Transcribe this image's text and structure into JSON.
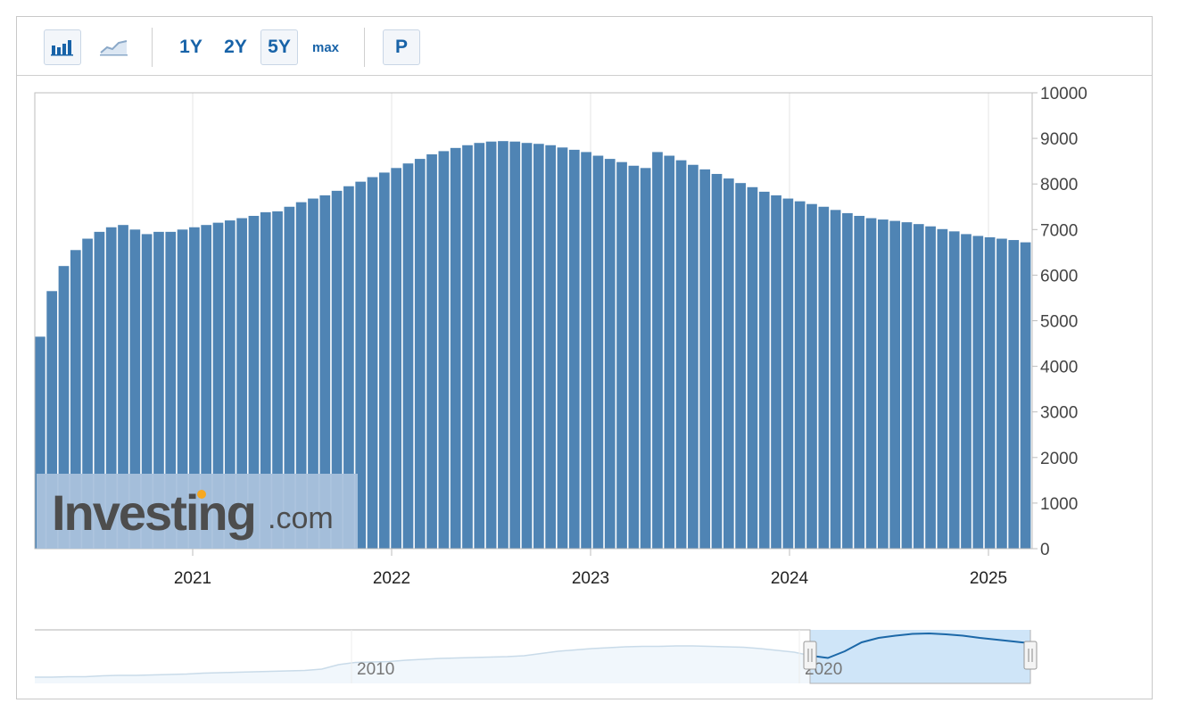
{
  "toolbar": {
    "chart_type_buttons": [
      {
        "name": "bar-chart-icon",
        "selected": true
      },
      {
        "name": "area-chart-icon",
        "selected": false
      }
    ],
    "ranges": [
      {
        "label": "1Y",
        "selected": false
      },
      {
        "label": "2Y",
        "selected": false
      },
      {
        "label": "5Y",
        "selected": true
      },
      {
        "label": "max",
        "selected": false
      }
    ],
    "p_label": "P"
  },
  "colors": {
    "bar": "#4f84b4",
    "navigator_line": "#1c68a8",
    "navigator_fill": "#cfe5f8",
    "navigator_bg_line": "#c9dbe9",
    "navigator_bg_fill": "#f1f7fc",
    "axis_text": "#444444",
    "watermark_bg": "#a9c1dc",
    "watermark_text": "#4d4d4d",
    "watermark_dot": "#f6a821"
  },
  "watermark": {
    "text": "Investing",
    "suffix": ".com"
  },
  "chart_data": {
    "type": "bar",
    "title": "",
    "xlabel": "",
    "ylabel": "",
    "ylim": [
      0,
      10000
    ],
    "yticks": [
      "0",
      "1000",
      "2000",
      "3000",
      "4000",
      "5000",
      "6000",
      "7000",
      "8000",
      "9000",
      "10000"
    ],
    "xticks": [
      "2021",
      "2022",
      "2023",
      "2024",
      "2025"
    ],
    "x_range": [
      "2020-04",
      "2025-03"
    ],
    "grid": true,
    "series": [
      {
        "values": [
          4650,
          5650,
          6200,
          6550,
          6800,
          6950,
          7050,
          7100,
          7000,
          6900,
          6950,
          6950,
          7000,
          7050,
          7100,
          7150,
          7200,
          7250,
          7300,
          7380,
          7400,
          7500,
          7600,
          7680,
          7750,
          7850,
          7950,
          8050,
          8150,
          8250,
          8350,
          8450,
          8550,
          8650,
          8720,
          8790,
          8850,
          8900,
          8930,
          8940,
          8930,
          8900,
          8880,
          8850,
          8800,
          8750,
          8700,
          8620,
          8550,
          8480,
          8400,
          8350,
          8700,
          8620,
          8520,
          8420,
          8320,
          8220,
          8120,
          8020,
          7930,
          7830,
          7750,
          7680,
          7620,
          7560,
          7500,
          7430,
          7360,
          7300,
          7250,
          7220,
          7190,
          7160,
          7120,
          7070,
          7010,
          6960,
          6900,
          6860,
          6830,
          6800,
          6770,
          6720
        ]
      }
    ],
    "navigator": {
      "xticks": [
        "2010",
        "2020"
      ],
      "series_relative": [
        0.02,
        0.02,
        0.03,
        0.03,
        0.05,
        0.06,
        0.06,
        0.07,
        0.08,
        0.09,
        0.11,
        0.12,
        0.13,
        0.14,
        0.15,
        0.16,
        0.17,
        0.2,
        0.3,
        0.35,
        0.36,
        0.37,
        0.4,
        0.42,
        0.44,
        0.45,
        0.46,
        0.47,
        0.48,
        0.5,
        0.55,
        0.6,
        0.63,
        0.66,
        0.68,
        0.7,
        0.71,
        0.71,
        0.72,
        0.72,
        0.71,
        0.7,
        0.69,
        0.66,
        0.62,
        0.58,
        0.5,
        0.45,
        0.6,
        0.8,
        0.9,
        0.95,
        0.99,
        1.0,
        0.98,
        0.95,
        0.9,
        0.86,
        0.82,
        0.78
      ]
    }
  }
}
